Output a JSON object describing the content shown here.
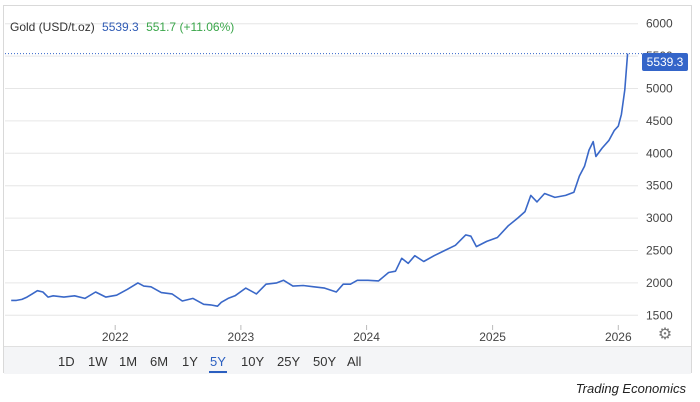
{
  "legend": {
    "name": "Gold (USD/t.oz)",
    "price": "5539.3",
    "change": "551.7 (+11.06%)"
  },
  "price_tag": "5539.3",
  "ranges": [
    "1D",
    "1W",
    "1M",
    "6M",
    "1Y",
    "5Y",
    "10Y",
    "25Y",
    "50Y",
    "All"
  ],
  "active_range": "5Y",
  "credit": "Trading Economics",
  "icons": {
    "settings": "gear-icon"
  },
  "colors": {
    "line": "#3a68c8",
    "price_tag": "#3465c9",
    "change": "#3aa64a",
    "active_range": "#2b5fc0"
  },
  "chart_data": {
    "type": "line",
    "series": [
      {
        "name": "Gold (USD/t.oz)",
        "x": [
          "2021-03-05",
          "2021-03-20",
          "2021-04-05",
          "2021-04-20",
          "2021-05-05",
          "2021-05-20",
          "2021-06-05",
          "2021-06-20",
          "2021-07-05",
          "2021-08-05",
          "2021-09-05",
          "2021-10-05",
          "2021-11-05",
          "2021-12-05",
          "2022-01-05",
          "2022-02-05",
          "2022-03-08",
          "2022-03-25",
          "2022-04-15",
          "2022-05-15",
          "2022-06-15",
          "2022-07-15",
          "2022-08-15",
          "2022-09-15",
          "2022-10-05",
          "2022-10-25",
          "2022-11-05",
          "2022-11-25",
          "2022-12-15",
          "2023-01-15",
          "2023-02-15",
          "2023-03-15",
          "2023-04-15",
          "2023-05-05",
          "2023-06-01",
          "2023-07-01",
          "2023-08-01",
          "2023-09-01",
          "2023-10-05",
          "2023-10-25",
          "2023-11-15",
          "2023-12-05",
          "2024-01-05",
          "2024-02-05",
          "2024-03-05",
          "2024-03-25",
          "2024-04-12",
          "2024-05-01",
          "2024-05-20",
          "2024-06-15",
          "2024-07-15",
          "2024-08-15",
          "2024-09-15",
          "2024-10-15",
          "2024-10-30",
          "2024-11-15",
          "2024-12-15",
          "2025-01-15",
          "2025-02-15",
          "2025-03-15",
          "2025-04-05",
          "2025-04-22",
          "2025-05-10",
          "2025-06-01",
          "2025-07-01",
          "2025-08-01",
          "2025-08-25",
          "2025-09-10",
          "2025-09-25",
          "2025-10-08",
          "2025-10-20",
          "2025-10-28",
          "2025-11-15",
          "2025-12-05",
          "2025-12-20",
          "2026-01-01",
          "2026-01-10",
          "2026-01-20",
          "2026-01-28"
        ],
        "y": [
          1730,
          1730,
          1745,
          1780,
          1830,
          1880,
          1860,
          1780,
          1800,
          1780,
          1800,
          1760,
          1860,
          1780,
          1810,
          1900,
          2000,
          1950,
          1940,
          1850,
          1830,
          1720,
          1760,
          1670,
          1660,
          1640,
          1700,
          1760,
          1800,
          1920,
          1830,
          1980,
          2000,
          2040,
          1950,
          1960,
          1940,
          1920,
          1860,
          1980,
          1980,
          2040,
          2040,
          2030,
          2160,
          2180,
          2380,
          2300,
          2420,
          2330,
          2420,
          2500,
          2580,
          2740,
          2720,
          2560,
          2640,
          2700,
          2880,
          3000,
          3100,
          3350,
          3250,
          3380,
          3320,
          3350,
          3400,
          3650,
          3800,
          4050,
          4180,
          3950,
          4080,
          4200,
          4350,
          4420,
          4600,
          4980,
          5539.3
        ]
      }
    ],
    "xlabel": "",
    "ylabel": "",
    "xticks": [
      "2022",
      "2023",
      "2024",
      "2025",
      "2026"
    ],
    "yticks": [
      1500,
      2000,
      2500,
      3000,
      3500,
      4000,
      4500,
      5000,
      5500,
      6000
    ],
    "ylim": [
      1350,
      6150
    ],
    "xlim": [
      "2021-02-15",
      "2026-02-04"
    ],
    "grid": true,
    "last_value_line": 5539.3
  }
}
